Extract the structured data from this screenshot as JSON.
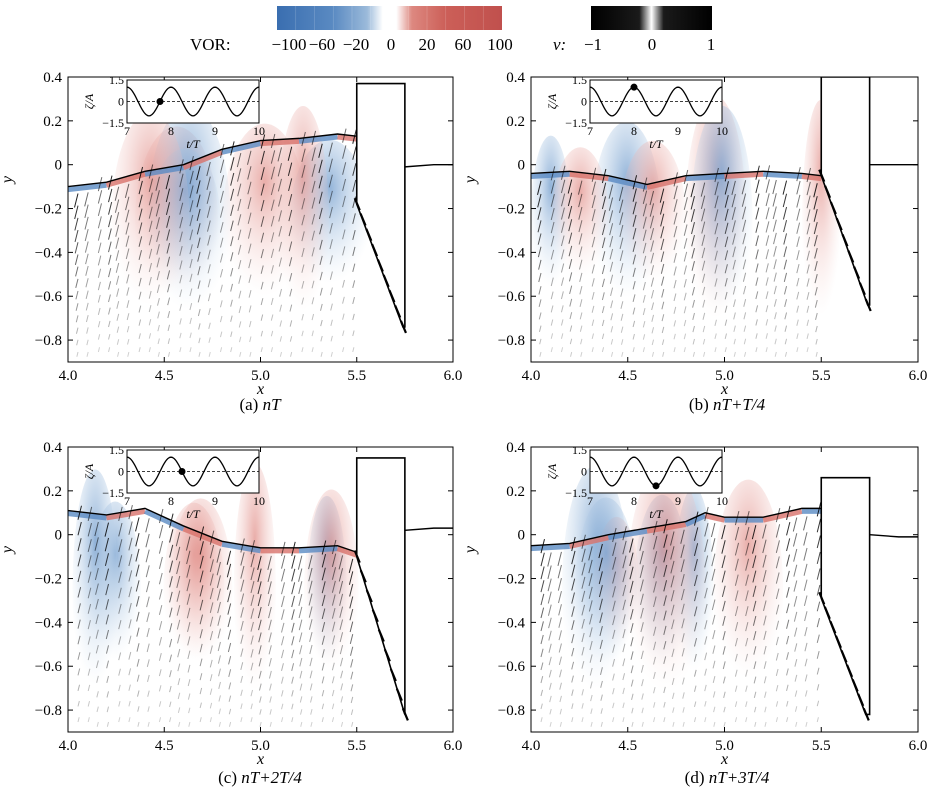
{
  "colorbars": {
    "vor": {
      "label": "VOR:",
      "ticks": [
        "−100",
        "−60",
        "−20",
        "0",
        "20",
        "60",
        "100"
      ],
      "colors": [
        "#3a6eb0",
        "#5a8ac2",
        "#8fb1d8",
        "#ffffff",
        "#e59b93",
        "#cf6a62",
        "#c0504d"
      ]
    },
    "v": {
      "label": "v:",
      "ticks": [
        "−1",
        "0",
        "1"
      ],
      "colors": [
        "#000000",
        "#ffffff",
        "#000000"
      ]
    }
  },
  "chart_data": [
    {
      "type": "vector-field",
      "caption_prefix": "(a)",
      "caption": "nT",
      "xlabel": "x",
      "ylabel": "y",
      "xlim": [
        4.0,
        6.0
      ],
      "ylim": [
        -0.9,
        0.4
      ],
      "xticks": [
        "4.0",
        "4.5",
        "5.0",
        "5.5",
        "6.0"
      ],
      "yticks": [
        "0.4",
        "0.2",
        "0",
        "−0.2",
        "−0.4",
        "−0.6",
        "−0.8"
      ],
      "surface": [
        [
          4.0,
          -0.1
        ],
        [
          4.2,
          -0.08
        ],
        [
          4.4,
          -0.03
        ],
        [
          4.6,
          0.0
        ],
        [
          4.8,
          0.07
        ],
        [
          5.0,
          0.11
        ],
        [
          5.2,
          0.12
        ],
        [
          5.4,
          0.14
        ],
        [
          5.5,
          0.13
        ]
      ],
      "surface_right": [
        [
          5.75,
          -0.01
        ],
        [
          5.9,
          0.0
        ],
        [
          6.0,
          0.0
        ]
      ],
      "structure": {
        "x_left": 5.5,
        "x_right": 5.75,
        "top": 0.37,
        "bottom_left": -0.18,
        "tip": [
          5.74,
          -0.74
        ]
      },
      "inset": {
        "xlabel": "t/T",
        "ylabel": "ζ/A",
        "xlim": [
          7,
          10
        ],
        "ylim": [
          -1.5,
          1.5
        ],
        "xticks": [
          "7",
          "8",
          "9",
          "10"
        ],
        "yticks": [
          "1.5",
          "0",
          "−1.5"
        ],
        "marker": [
          7.75,
          0.0
        ]
      }
    },
    {
      "type": "vector-field",
      "caption_prefix": "(b)",
      "caption": "nT+T/4",
      "xlabel": "x",
      "ylabel": "y",
      "xlim": [
        4.0,
        6.0
      ],
      "ylim": [
        -0.9,
        0.4
      ],
      "xticks": [
        "4.0",
        "4.5",
        "5.0",
        "5.5",
        "6.0"
      ],
      "yticks": [
        "0.4",
        "0.2",
        "0",
        "−0.2",
        "−0.4",
        "−0.6",
        "−0.8"
      ],
      "surface": [
        [
          4.0,
          -0.04
        ],
        [
          4.2,
          -0.03
        ],
        [
          4.4,
          -0.05
        ],
        [
          4.6,
          -0.09
        ],
        [
          4.8,
          -0.05
        ],
        [
          5.0,
          -0.04
        ],
        [
          5.2,
          -0.03
        ],
        [
          5.4,
          -0.04
        ],
        [
          5.5,
          -0.05
        ]
      ],
      "surface_right": [
        [
          5.75,
          0.0
        ],
        [
          5.9,
          0.0
        ],
        [
          6.0,
          0.0
        ]
      ],
      "structure": {
        "x_left": 5.5,
        "x_right": 5.75,
        "top": 0.4,
        "bottom_left": -0.05,
        "tip": [
          5.74,
          -0.64
        ]
      },
      "inset": {
        "xlabel": "t/T",
        "ylabel": "ζ/A",
        "xlim": [
          7,
          10
        ],
        "ylim": [
          -1.5,
          1.5
        ],
        "xticks": [
          "7",
          "8",
          "9",
          "10"
        ],
        "yticks": [
          "1.5",
          "0",
          "−1.5"
        ],
        "marker": [
          8.0,
          1.0
        ]
      }
    },
    {
      "type": "vector-field",
      "caption_prefix": "(c)",
      "caption": "nT+2T/4",
      "xlabel": "x",
      "ylabel": "y",
      "xlim": [
        4.0,
        6.0
      ],
      "ylim": [
        -0.9,
        0.4
      ],
      "xticks": [
        "4.0",
        "4.5",
        "5.0",
        "5.5",
        "6.0"
      ],
      "yticks": [
        "0.4",
        "0.2",
        "0",
        "−0.2",
        "−0.4",
        "−0.6",
        "−0.8"
      ],
      "surface": [
        [
          4.0,
          0.11
        ],
        [
          4.2,
          0.09
        ],
        [
          4.4,
          0.12
        ],
        [
          4.6,
          0.04
        ],
        [
          4.8,
          -0.03
        ],
        [
          5.0,
          -0.06
        ],
        [
          5.2,
          -0.06
        ],
        [
          5.4,
          -0.05
        ],
        [
          5.5,
          -0.08
        ]
      ],
      "surface_right": [
        [
          5.75,
          0.02
        ],
        [
          5.9,
          0.03
        ],
        [
          6.0,
          0.03
        ]
      ],
      "structure": {
        "x_left": 5.5,
        "x_right": 5.75,
        "top": 0.35,
        "bottom_left": -0.1,
        "tip": [
          5.75,
          -0.82
        ]
      },
      "inset": {
        "xlabel": "t/T",
        "ylabel": "ζ/A",
        "xlim": [
          7,
          10
        ],
        "ylim": [
          -1.5,
          1.5
        ],
        "xticks": [
          "7",
          "8",
          "9",
          "10"
        ],
        "yticks": [
          "1.5",
          "0",
          "−1.5"
        ],
        "marker": [
          8.25,
          0.0
        ]
      }
    },
    {
      "type": "vector-field",
      "caption_prefix": "(d)",
      "caption": "nT+3T/4",
      "xlabel": "x",
      "ylabel": "y",
      "xlim": [
        4.0,
        6.0
      ],
      "ylim": [
        -0.9,
        0.4
      ],
      "xticks": [
        "4.0",
        "4.5",
        "5.0",
        "5.5",
        "6.0"
      ],
      "yticks": [
        "0.4",
        "0.2",
        "0",
        "−0.2",
        "−0.4",
        "−0.6",
        "−0.8"
      ],
      "surface": [
        [
          4.0,
          -0.05
        ],
        [
          4.2,
          -0.04
        ],
        [
          4.4,
          0.0
        ],
        [
          4.6,
          0.03
        ],
        [
          4.8,
          0.06
        ],
        [
          4.9,
          0.1
        ],
        [
          5.0,
          0.08
        ],
        [
          5.2,
          0.08
        ],
        [
          5.4,
          0.12
        ],
        [
          5.5,
          0.12
        ]
      ],
      "surface_right": [
        [
          5.75,
          0.0
        ],
        [
          5.9,
          -0.01
        ],
        [
          6.0,
          -0.01
        ]
      ],
      "structure": {
        "x_left": 5.5,
        "x_right": 5.75,
        "top": 0.26,
        "bottom_left": -0.29,
        "tip": [
          5.73,
          -0.82
        ]
      },
      "inset": {
        "xlabel": "t/T",
        "ylabel": "ζ/A",
        "xlim": [
          7,
          10
        ],
        "ylim": [
          -1.5,
          1.5
        ],
        "xticks": [
          "7",
          "8",
          "9",
          "10"
        ],
        "yticks": [
          "1.5",
          "0",
          "−1.5"
        ],
        "marker": [
          8.5,
          -1.0
        ]
      }
    }
  ]
}
